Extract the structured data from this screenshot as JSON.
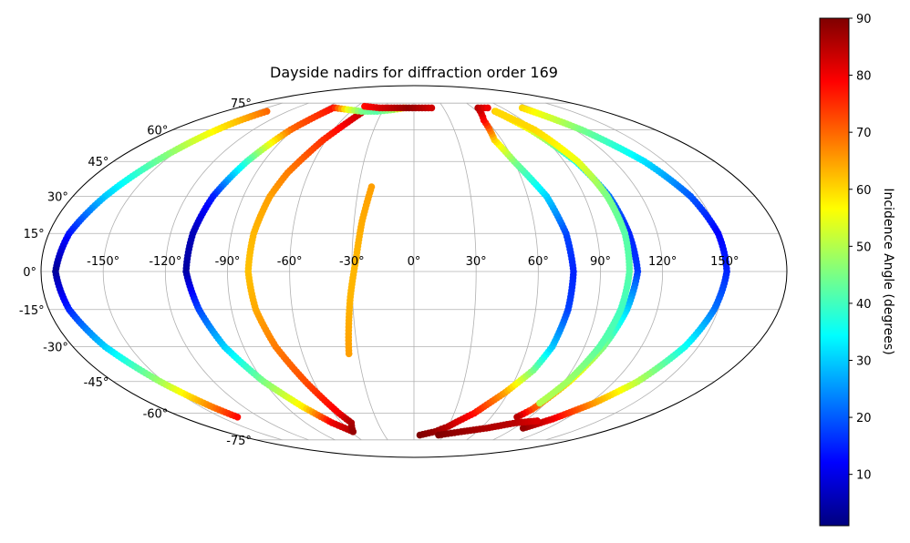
{
  "chart_data": {
    "type": "scatter",
    "projection": "mollweide",
    "title": "Dayside nadirs for diffraction order 169",
    "xlabel": "",
    "ylabel": "",
    "grid": true,
    "xlim": [
      -180,
      180
    ],
    "ylim": [
      -90,
      90
    ],
    "lon_ticks": [
      -150,
      -120,
      -90,
      -60,
      -30,
      0,
      30,
      60,
      90,
      120,
      150
    ],
    "lon_tick_labels": [
      "-150°",
      "-120°",
      "-90°",
      "-60°",
      "-30°",
      "0°",
      "30°",
      "60°",
      "90°",
      "120°",
      "150°"
    ],
    "lat_ticks": [
      -75,
      -60,
      -45,
      -30,
      -15,
      0,
      15,
      30,
      45,
      60,
      75
    ],
    "lat_tick_labels": [
      "-75°",
      "-60°",
      "-45°",
      "-30°",
      "-15°",
      "0°",
      "15°",
      "30°",
      "45°",
      "60°",
      "75°"
    ],
    "colorbar": {
      "label": "Incidence Angle (degrees)",
      "colormap": "jet",
      "range": [
        1,
        90
      ],
      "ticks": [
        10,
        20,
        30,
        40,
        50,
        60,
        70,
        80,
        90
      ],
      "tick_labels": [
        "10",
        "20",
        "30",
        "40",
        "50",
        "60",
        "70",
        "80",
        "90"
      ]
    },
    "series": [
      {
        "points": [
          [
            -140,
            70,
            70
          ],
          [
            -145,
            64,
            62
          ],
          [
            -152,
            50,
            48
          ],
          [
            -163,
            30,
            30
          ],
          [
            -170,
            15,
            14
          ],
          [
            -173,
            0,
            3
          ],
          [
            -170,
            -15,
            15
          ],
          [
            -163,
            -30,
            30
          ],
          [
            -152,
            -45,
            48
          ],
          [
            -142,
            -57,
            68
          ],
          [
            -137,
            -62,
            78
          ]
        ]
      },
      {
        "points": [
          [
            -82,
            72,
            78
          ],
          [
            -92,
            60,
            70
          ],
          [
            -100,
            45,
            40
          ],
          [
            -106,
            30,
            15
          ],
          [
            -109,
            15,
            6
          ],
          [
            -110,
            0,
            4
          ],
          [
            -106,
            -15,
            18
          ],
          [
            -100,
            -30,
            30
          ],
          [
            -90,
            -45,
            45
          ],
          [
            -78,
            -57,
            58
          ],
          [
            -68,
            -65,
            80
          ],
          [
            -58,
            -70,
            86
          ]
        ]
      },
      {
        "points": [
          [
            -48,
            70,
            85
          ],
          [
            -62,
            55,
            75
          ],
          [
            -72,
            40,
            68
          ],
          [
            -76,
            30,
            65
          ],
          [
            -79,
            15,
            63
          ],
          [
            -80,
            0,
            62
          ],
          [
            -78,
            -15,
            64
          ],
          [
            -73,
            -30,
            68
          ],
          [
            -65,
            -45,
            72
          ],
          [
            -56,
            -60,
            80
          ],
          [
            -52,
            -65,
            86
          ],
          [
            -58,
            -70,
            88
          ]
        ]
      },
      {
        "points": [
          [
            -80,
            72,
            75
          ],
          [
            -65,
            71,
            55
          ],
          [
            -50,
            70,
            45
          ],
          [
            -35,
            70,
            42
          ],
          [
            -20,
            71,
            48
          ],
          [
            -10,
            72,
            60
          ]
        ]
      },
      {
        "points": [
          [
            -52,
            73,
            78
          ],
          [
            -35,
            72,
            82
          ],
          [
            -20,
            72,
            85
          ],
          [
            -5,
            72,
            88
          ],
          [
            5,
            72,
            86
          ],
          [
            18,
            72,
            83
          ]
        ]
      },
      {
        "points": [
          [
            -23,
            34,
            65
          ],
          [
            -26,
            20,
            64
          ],
          [
            -28,
            5,
            63
          ],
          [
            -31,
            -10,
            63
          ],
          [
            -33,
            -22,
            64
          ],
          [
            -35,
            -33,
            65
          ]
        ]
      },
      {
        "points": [
          [
            6,
            -72,
            90
          ],
          [
            20,
            -70,
            88
          ],
          [
            30,
            -67,
            85
          ],
          [
            45,
            -60,
            78
          ],
          [
            58,
            -50,
            65
          ],
          [
            68,
            -40,
            45
          ],
          [
            73,
            -30,
            30
          ],
          [
            76,
            -15,
            18
          ],
          [
            77,
            0,
            15
          ],
          [
            75,
            15,
            18
          ],
          [
            70,
            30,
            30
          ],
          [
            60,
            45,
            45
          ],
          [
            55,
            55,
            60
          ],
          [
            58,
            65,
            78
          ],
          [
            65,
            72,
            85
          ],
          [
            75,
            72,
            80
          ]
        ]
      },
      {
        "points": [
          [
            77,
            70,
            62
          ],
          [
            87,
            60,
            55
          ],
          [
            97,
            45,
            35
          ],
          [
            103,
            30,
            22
          ],
          [
            106,
            15,
            15
          ],
          [
            108,
            0,
            17
          ],
          [
            105,
            -15,
            30
          ],
          [
            100,
            -30,
            45
          ],
          [
            93,
            -45,
            58
          ],
          [
            85,
            -58,
            72
          ],
          [
            80,
            -62,
            85
          ]
        ]
      },
      {
        "points": [
          [
            78,
            70,
            60
          ],
          [
            90,
            60,
            60
          ],
          [
            98,
            45,
            55
          ],
          [
            102,
            30,
            45
          ],
          [
            104,
            15,
            42
          ],
          [
            104,
            0,
            42
          ],
          [
            102,
            -15,
            40
          ],
          [
            98,
            -30,
            42
          ],
          [
            92,
            -45,
            48
          ],
          [
            86,
            -55,
            50
          ]
        ]
      },
      {
        "points": [
          [
            110,
            72,
            60
          ],
          [
            125,
            60,
            45
          ],
          [
            138,
            45,
            32
          ],
          [
            146,
            30,
            20
          ],
          [
            150,
            15,
            12
          ],
          [
            151,
            0,
            15
          ],
          [
            148,
            -15,
            22
          ],
          [
            143,
            -30,
            35
          ],
          [
            134,
            -45,
            50
          ],
          [
            123,
            -55,
            65
          ],
          [
            110,
            -63,
            80
          ],
          [
            98,
            -68,
            88
          ]
        ]
      },
      {
        "points": [
          [
            25,
            -72,
            90
          ],
          [
            45,
            -70,
            88
          ],
          [
            65,
            -68,
            86
          ],
          [
            85,
            -65,
            85
          ],
          [
            100,
            -64,
            82
          ]
        ]
      }
    ]
  }
}
